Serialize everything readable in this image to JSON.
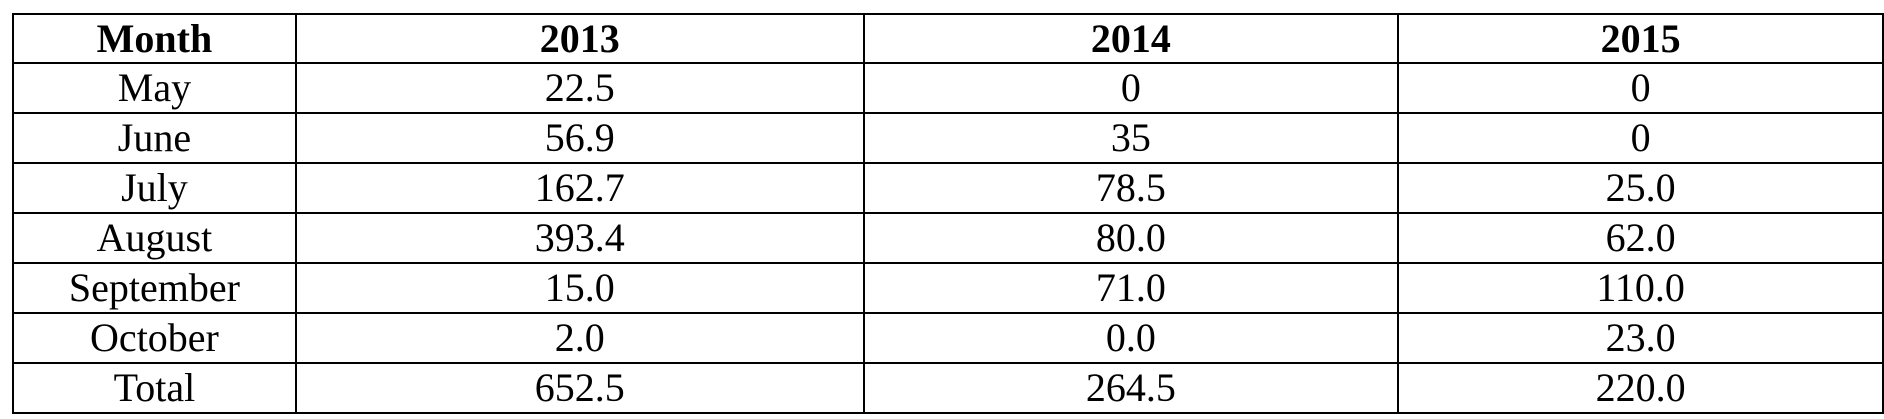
{
  "table": {
    "headers": [
      "Month",
      "2013",
      "2014",
      "2015"
    ],
    "rows": [
      [
        "May",
        "22.5",
        "0",
        "0"
      ],
      [
        "June",
        "56.9",
        "35",
        "0"
      ],
      [
        "July",
        "162.7",
        "78.5",
        "25.0"
      ],
      [
        "August",
        "393.4",
        "80.0",
        "62.0"
      ],
      [
        "September",
        "15.0",
        "71.0",
        "110.0"
      ],
      [
        "October",
        "2.0",
        "0.0",
        "23.0"
      ],
      [
        "Total",
        "652.5",
        "264.5",
        "220.0"
      ]
    ]
  }
}
